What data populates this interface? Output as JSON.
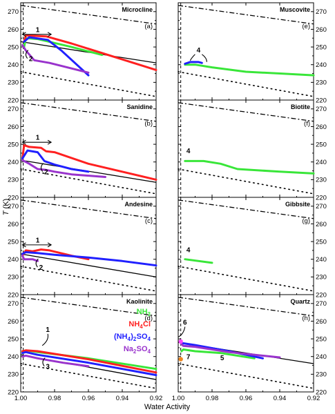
{
  "figure": {
    "ylabel": "T (K)",
    "xlabel": "Water Activity"
  },
  "legend": [
    {
      "sym": "NH",
      "sub": "3",
      "rest": "",
      "sub2": "",
      "color": "#39e639"
    },
    {
      "sym": "NH",
      "sub": "4",
      "rest": "Cl",
      "sub2": "",
      "color": "#ff2020"
    },
    {
      "sym": "(NH",
      "sub": "4",
      "rest": ")",
      "sub2": "2",
      "tail": "SO",
      "sub3": "4",
      "color": "#2020ff"
    },
    {
      "sym": "Na",
      "sub": "2",
      "rest": "SO",
      "sub2": "4",
      "color": "#9933cc"
    }
  ],
  "chart_data": [
    {
      "type": "line",
      "panel": "a",
      "title": "Microcline",
      "xlim": [
        1.0,
        0.92
      ],
      "ylim": [
        220,
        275
      ],
      "xticks": [
        1.0,
        0.98,
        0.96,
        0.94,
        0.92
      ],
      "yticks": [
        220,
        230,
        240,
        250,
        260,
        270
      ],
      "reference_lines": {
        "dash_dot": [
          [
            1.0,
            273.5
          ],
          [
            0.92,
            263
          ]
        ],
        "dotted": [
          [
            1.0,
            236
          ],
          [
            0.92,
            222
          ]
        ],
        "solid": [
          [
            1.0,
            253
          ],
          [
            0.92,
            241
          ]
        ]
      },
      "series": [
        {
          "name": "NH3",
          "color": "#39e639",
          "x": [
            0.998,
            0.997,
            0.99,
            0.97,
            0.952
          ],
          "y": [
            250,
            255,
            254.5,
            250,
            245.5
          ]
        },
        {
          "name": "NH4Cl",
          "color": "#ff2020",
          "x": [
            0.998,
            0.997,
            0.985,
            0.97,
            0.92
          ],
          "y": [
            253,
            256.5,
            256,
            252,
            237
          ]
        },
        {
          "name": "(NH4)2SO4",
          "color": "#2020ff",
          "x": [
            0.998,
            0.995,
            0.984,
            0.976,
            0.96
          ],
          "y": [
            253,
            255.5,
            254,
            248,
            234
          ]
        },
        {
          "name": "Na2SO4",
          "color": "#9933cc",
          "x": [
            0.999,
            0.997,
            0.992,
            0.983,
            0.96
          ],
          "y": [
            251,
            248,
            242.5,
            241,
            235.5
          ]
        }
      ],
      "annotations": [
        {
          "label": "1",
          "x": 0.99,
          "y": 258.5
        },
        {
          "label": "2",
          "x": 0.994,
          "y": 242
        }
      ]
    },
    {
      "type": "line",
      "panel": "b",
      "title": "Sanidine",
      "xlim": [
        1.0,
        0.92
      ],
      "ylim": [
        220,
        275
      ],
      "xticks": [
        1.0,
        0.98,
        0.96,
        0.94,
        0.92
      ],
      "yticks": [
        220,
        230,
        240,
        250,
        260,
        270
      ],
      "reference_lines": {
        "dash_dot": [
          [
            1.0,
            273.5
          ],
          [
            0.92,
            263
          ]
        ],
        "dotted": [
          [
            1.0,
            236
          ],
          [
            0.92,
            222
          ]
        ],
        "solid": [
          [
            1.0,
            241
          ],
          [
            0.92,
            228.5
          ]
        ]
      },
      "series": [
        {
          "name": "NH3",
          "color": "#39e639",
          "x": [],
          "y": []
        },
        {
          "name": "NH4Cl",
          "color": "#ff2020",
          "x": [
            0.999,
            0.998,
            0.995,
            0.988,
            0.985,
            0.98,
            0.96,
            0.92
          ],
          "y": [
            242,
            249.5,
            248.5,
            248,
            246,
            245.5,
            239,
            230
          ]
        },
        {
          "name": "(NH4)2SO4",
          "color": "#2020ff",
          "x": [
            0.999,
            0.996,
            0.99,
            0.986,
            0.98,
            0.97,
            0.96
          ],
          "y": [
            242,
            246.5,
            245.5,
            240.5,
            238.5,
            236,
            234.5
          ]
        },
        {
          "name": "Na2SO4",
          "color": "#9933cc",
          "x": [
            0.999,
            0.995,
            0.99,
            0.985,
            0.98,
            0.97,
            0.95
          ],
          "y": [
            241,
            239,
            236,
            235.5,
            234.5,
            233,
            231.5
          ]
        }
      ],
      "annotations": [
        {
          "label": "1",
          "x": 0.99,
          "y": 252.5
        },
        {
          "label": "2",
          "x": 0.985,
          "y": 233
        }
      ]
    },
    {
      "type": "line",
      "panel": "c",
      "title": "Andesine",
      "xlim": [
        1.0,
        0.92
      ],
      "ylim": [
        220,
        275
      ],
      "xticks": [
        1.0,
        0.98,
        0.96,
        0.94,
        0.92
      ],
      "yticks": [
        220,
        230,
        240,
        250,
        260,
        270
      ],
      "reference_lines": {
        "dash_dot": [
          [
            1.0,
            273.5
          ],
          [
            0.92,
            263
          ]
        ],
        "dotted": [
          [
            1.0,
            236
          ],
          [
            0.92,
            222
          ]
        ],
        "solid": [
          [
            1.0,
            243
          ],
          [
            0.92,
            230
          ]
        ]
      },
      "series": [
        {
          "name": "NH3",
          "color": "#39e639",
          "x": [],
          "y": []
        },
        {
          "name": "NH4Cl",
          "color": "#ff2020",
          "x": [
            0.999,
            0.997,
            0.993,
            0.988,
            0.983,
            0.97,
            0.96
          ],
          "y": [
            242,
            245,
            244.5,
            245.5,
            245,
            242,
            240
          ]
        },
        {
          "name": "(NH4)2SO4",
          "color": "#2020ff",
          "x": [
            0.999,
            0.997,
            0.99,
            0.98,
            0.96,
            0.94,
            0.92
          ],
          "y": [
            243,
            244,
            243.5,
            242.5,
            241,
            239,
            236.5
          ]
        },
        {
          "name": "Na2SO4",
          "color": "#9933cc",
          "x": [
            0.999,
            0.998,
            0.993,
            0.99
          ],
          "y": [
            242,
            240,
            240,
            239
          ]
        }
      ],
      "annotations": [
        {
          "label": "1",
          "x": 0.99,
          "y": 249.5
        },
        {
          "label": "2",
          "x": 0.988,
          "y": 234
        }
      ]
    },
    {
      "type": "line",
      "panel": "d",
      "title": "Kaolinite",
      "xlim": [
        1.0,
        0.92
      ],
      "ylim": [
        220,
        275
      ],
      "xticks": [
        1.0,
        0.98,
        0.96,
        0.94,
        0.92
      ],
      "yticks": [
        220,
        230,
        240,
        250,
        260,
        270
      ],
      "reference_lines": {
        "dash_dot": [
          [
            1.0,
            273.5
          ],
          [
            0.92,
            263
          ]
        ],
        "dotted": [
          [
            1.0,
            236
          ],
          [
            0.92,
            222
          ]
        ],
        "solid": [
          [
            1.0,
            241
          ],
          [
            0.92,
            227
          ]
        ]
      },
      "series": [
        {
          "name": "NH3",
          "color": "#39e639",
          "x": [
            0.999,
            0.997,
            0.99,
            0.96,
            0.92
          ],
          "y": [
            242,
            243.5,
            242.5,
            239,
            233
          ]
        },
        {
          "name": "NH4Cl",
          "color": "#ff2020",
          "x": [
            0.999,
            0.997,
            0.99,
            0.96,
            0.92
          ],
          "y": [
            243,
            243.5,
            243,
            238.5,
            231
          ]
        },
        {
          "name": "(NH4)2SO4",
          "color": "#2020ff",
          "x": [
            0.999,
            0.997,
            0.99,
            0.96,
            0.92
          ],
          "y": [
            242,
            242.5,
            241,
            236.5,
            229.5
          ]
        },
        {
          "name": "Na2SO4",
          "color": "#9933cc",
          "x": [
            0.999,
            0.997,
            0.99,
            0.975,
            0.96
          ],
          "y": [
            240,
            240.5,
            239,
            236.5,
            234.5
          ]
        }
      ],
      "annotations": [
        {
          "label": "1",
          "x": 0.984,
          "y": 254
        },
        {
          "label": "3",
          "x": 0.984,
          "y": 233
        }
      ]
    },
    {
      "type": "line",
      "panel": "e",
      "title": "Muscovite",
      "xlim": [
        1.0,
        0.92
      ],
      "ylim": [
        220,
        275
      ],
      "xticks": [
        1.0,
        0.98,
        0.96,
        0.94,
        0.92
      ],
      "yticks": [
        220,
        230,
        240,
        250,
        260,
        270
      ],
      "reference_lines": {
        "dash_dot": [
          [
            1.0,
            273.5
          ],
          [
            0.92,
            263
          ]
        ],
        "dotted": [
          [
            1.0,
            236
          ],
          [
            0.92,
            222
          ]
        ],
        "solid": []
      },
      "series": [
        {
          "name": "NH3",
          "color": "#39e639",
          "x": [
            0.996,
            0.99,
            0.98,
            0.96,
            0.94,
            0.92
          ],
          "y": [
            240,
            240,
            238.5,
            236,
            235,
            234
          ]
        },
        {
          "name": "NH4Cl",
          "color": "#ff2020",
          "x": [],
          "y": []
        },
        {
          "name": "(NH4)2SO4",
          "color": "#2020ff",
          "x": [
            0.996,
            0.993,
            0.988,
            0.986
          ],
          "y": [
            240.5,
            241.5,
            241.5,
            241
          ]
        },
        {
          "name": "Na2SO4",
          "color": "#9933cc",
          "x": [],
          "y": []
        }
      ],
      "annotations": [
        {
          "label": "4",
          "x": 0.988,
          "y": 247
        }
      ]
    },
    {
      "type": "line",
      "panel": "f",
      "title": "Biotite",
      "xlim": [
        1.0,
        0.92
      ],
      "ylim": [
        220,
        275
      ],
      "xticks": [
        1.0,
        0.98,
        0.96,
        0.94,
        0.92
      ],
      "yticks": [
        220,
        230,
        240,
        250,
        260,
        270
      ],
      "reference_lines": {
        "dash_dot": [
          [
            1.0,
            273.5
          ],
          [
            0.92,
            263
          ]
        ],
        "dotted": [
          [
            1.0,
            236
          ],
          [
            0.92,
            222
          ]
        ],
        "solid": []
      },
      "series": [
        {
          "name": "NH3",
          "color": "#39e639",
          "x": [
            0.996,
            0.985,
            0.975,
            0.965,
            0.94,
            0.92
          ],
          "y": [
            240.5,
            240.5,
            239,
            236,
            234.5,
            233.5
          ]
        },
        {
          "name": "NH4Cl",
          "color": "#ff2020",
          "x": [],
          "y": []
        },
        {
          "name": "(NH4)2SO4",
          "color": "#2020ff",
          "x": [],
          "y": []
        },
        {
          "name": "Na2SO4",
          "color": "#9933cc",
          "x": [],
          "y": []
        }
      ],
      "annotations": [
        {
          "label": "4",
          "x": 0.994,
          "y": 245
        }
      ]
    },
    {
      "type": "line",
      "panel": "g",
      "title": "Gibbsite",
      "xlim": [
        1.0,
        0.92
      ],
      "ylim": [
        220,
        275
      ],
      "xticks": [
        1.0,
        0.98,
        0.96,
        0.94,
        0.92
      ],
      "yticks": [
        220,
        230,
        240,
        250,
        260,
        270
      ],
      "reference_lines": {
        "dash_dot": [
          [
            1.0,
            273.5
          ],
          [
            0.92,
            263
          ]
        ],
        "dotted": [
          [
            1.0,
            236
          ],
          [
            0.92,
            222
          ]
        ],
        "solid": []
      },
      "series": [
        {
          "name": "NH3",
          "color": "#39e639",
          "x": [
            0.996,
            0.98
          ],
          "y": [
            240,
            238
          ]
        },
        {
          "name": "NH4Cl",
          "color": "#ff2020",
          "x": [],
          "y": []
        },
        {
          "name": "(NH4)2SO4",
          "color": "#2020ff",
          "x": [],
          "y": []
        },
        {
          "name": "Na2SO4",
          "color": "#9933cc",
          "x": [],
          "y": []
        }
      ],
      "annotations": [
        {
          "label": "4",
          "x": 0.994,
          "y": 244
        }
      ]
    },
    {
      "type": "line",
      "panel": "h",
      "title": "Quartz",
      "xlim": [
        1.0,
        0.92
      ],
      "ylim": [
        220,
        275
      ],
      "xticks": [
        1.0,
        0.98,
        0.96,
        0.94,
        0.92
      ],
      "yticks": [
        220,
        230,
        240,
        250,
        260,
        270
      ],
      "reference_lines": {
        "dash_dot": [
          [
            1.0,
            273.5
          ],
          [
            0.92,
            263
          ]
        ],
        "dotted": [
          [
            1.0,
            236
          ],
          [
            0.92,
            222
          ]
        ],
        "solid": [
          [
            1.0,
            248
          ],
          [
            0.92,
            236
          ]
        ]
      },
      "series": [
        {
          "name": "NH3",
          "color": "#39e639",
          "x": [
            0.998,
            0.997,
            0.99,
            0.975,
            0.955
          ],
          "y": [
            243,
            244,
            243,
            242,
            239
          ]
        },
        {
          "name": "NH4Cl",
          "color": "#ff2020",
          "x": [],
          "y": []
        },
        {
          "name": "(NH4)2SO4",
          "color": "#2020ff",
          "x": [
            0.998,
            0.997,
            0.99,
            0.97,
            0.95
          ],
          "y": [
            247,
            247.5,
            246.5,
            243,
            239
          ]
        },
        {
          "name": "Na2SO4",
          "color": "#9933cc",
          "x": [
            0.998,
            0.997,
            0.99,
            0.97,
            0.94
          ],
          "y": [
            247,
            246,
            245.5,
            242.5,
            239.5
          ]
        }
      ],
      "markers": [
        {
          "label": "6",
          "x": 0.9985,
          "y": 248.5,
          "color": "#ff44ff"
        },
        {
          "label": "7",
          "x": 0.9985,
          "y": 238.5,
          "color": "#ee8822"
        }
      ],
      "annotations": [
        {
          "label": "6",
          "x": 0.996,
          "y": 258
        },
        {
          "label": "7",
          "x": 0.994,
          "y": 238.5
        },
        {
          "label": "5",
          "x": 0.974,
          "y": 238
        }
      ]
    }
  ]
}
